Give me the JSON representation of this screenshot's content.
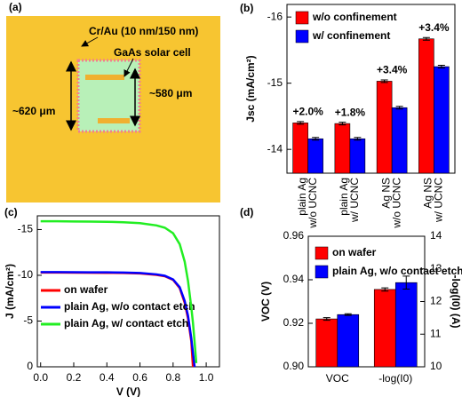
{
  "diagram": {
    "label": "(a)",
    "metal_label": "Cr/Au (10 nm/150 nm)",
    "cell_label": "GaAs solar cell",
    "outer_size": "~620 μm",
    "inner_size": "~580 μm"
  },
  "chart_data": [
    {
      "type": "bar",
      "panel_label": "(b)",
      "ylabel": "Jsc (mA/cm²)",
      "categories": [
        [
          "plain Ag",
          "w/o UCNC"
        ],
        [
          "plain Ag",
          "w/ UCNC"
        ],
        [
          "Ag NS",
          "w/o UCNC"
        ],
        [
          "Ag NS",
          "w/ UCNC"
        ]
      ],
      "annotations": [
        "+2.0%",
        "+1.8%",
        "+3.4%",
        "+3.4%"
      ],
      "series": [
        {
          "name": "w/o confinement",
          "color": "#ff0000",
          "values": [
            -14.4,
            -14.39,
            -15.03,
            -15.67
          ],
          "errors": [
            0.02,
            0.02,
            0.02,
            0.02
          ]
        },
        {
          "name": "w/ confinement",
          "color": "#0000ff",
          "values": [
            -14.16,
            -14.16,
            -14.63,
            -15.25
          ],
          "errors": [
            0.02,
            0.02,
            0.02,
            0.02
          ]
        }
      ],
      "ylim": [
        -13.64,
        -16.19
      ],
      "yticks": [
        -14,
        -15,
        -16
      ],
      "legend": "upper left"
    },
    {
      "type": "line",
      "panel_label": "(c)",
      "xlabel": "V (V)",
      "ylabel": "J (mA/cm²)",
      "x": [
        0.0,
        0.1,
        0.2,
        0.3,
        0.4,
        0.5,
        0.6,
        0.7,
        0.75,
        0.8,
        0.84,
        0.87,
        0.89,
        0.91,
        0.92,
        0.93,
        0.94
      ],
      "series": [
        {
          "name": "on wafer",
          "color": "#ff0000",
          "values": [
            -10.3,
            -10.3,
            -10.29,
            -10.28,
            -10.27,
            -10.25,
            -10.2,
            -10.05,
            -9.9,
            -9.5,
            -8.6,
            -7.0,
            -5.3,
            -2.8,
            0.0,
            null,
            null
          ]
        },
        {
          "name": "plain Ag, w/o contact etch",
          "color": "#0000ff",
          "values": [
            -10.35,
            -10.35,
            -10.34,
            -10.33,
            -10.32,
            -10.3,
            -10.25,
            -10.1,
            -9.95,
            -9.55,
            -8.7,
            -7.2,
            -5.6,
            -3.1,
            -1.5,
            0.0,
            null
          ]
        },
        {
          "name": "plain Ag, w/ contact etch",
          "color": "#22ee22",
          "values": [
            -15.9,
            -15.9,
            -15.88,
            -15.87,
            -15.85,
            -15.8,
            -15.7,
            -15.45,
            -15.2,
            -14.6,
            -13.4,
            -11.5,
            -9.4,
            -6.5,
            -4.8,
            -2.7,
            -0.4
          ]
        }
      ],
      "xlim": [
        -0.02,
        1.08
      ],
      "xticks": [
        {
          "value": 0,
          "label": "0.0"
        },
        0.2,
        0.4,
        0.6,
        0.8,
        {
          "value": 1,
          "label": "1.0"
        }
      ],
      "ylim": [
        0,
        -16.5
      ],
      "yticks": [
        0,
        -5,
        -10,
        -15
      ],
      "legend": "center left"
    },
    {
      "type": "bar",
      "panel_label": "(d)",
      "ylabel": "VOC (V)",
      "y2label": "-log(I0) (A)",
      "categories": [
        [
          "VOC"
        ],
        [
          "-log(I0)"
        ]
      ],
      "category_axes": [
        "y",
        "y2"
      ],
      "series": [
        {
          "name": "on wafer",
          "color": "#ff0000",
          "values": [
            0.922,
            12.37
          ],
          "errors": [
            0.0006,
            0.05
          ]
        },
        {
          "name": "plain Ag, w/o contact etch",
          "color": "#0000ff",
          "values": [
            0.924,
            12.58
          ],
          "errors": [
            0.0004,
            0.2
          ]
        }
      ],
      "ylim": [
        0.9,
        0.96
      ],
      "yticks": [
        {
          "value": 0.9,
          "label": "0.90"
        },
        0.92,
        0.94,
        0.96
      ],
      "y2lim": [
        10,
        14
      ],
      "y2ticks": [
        10,
        11,
        12,
        13,
        14
      ],
      "legend": "upper left"
    }
  ]
}
